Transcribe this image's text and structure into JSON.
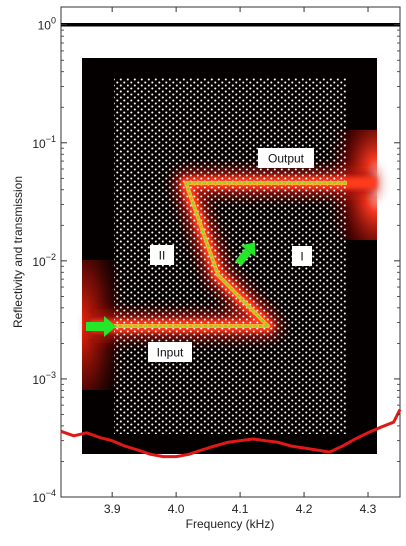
{
  "chart_data": {
    "type": "line",
    "title": "",
    "xlabel": "Frequency (kHz)",
    "ylabel": "Reflectivity and transmission",
    "xlim": [
      3.82,
      4.35
    ],
    "ylim_log10": [
      -4,
      0.15
    ],
    "yscale": "log",
    "x_ticks": [
      {
        "value": 3.9,
        "label": "3.9"
      },
      {
        "value": 4.0,
        "label": "4.0"
      },
      {
        "value": 4.1,
        "label": "4.1"
      },
      {
        "value": 4.2,
        "label": "4.2"
      },
      {
        "value": 4.3,
        "label": "4.3"
      }
    ],
    "y_ticks": [
      {
        "exp": 0,
        "base": "10",
        "sup": "0"
      },
      {
        "exp": -1,
        "base": "10",
        "sup": "−1"
      },
      {
        "exp": -2,
        "base": "10",
        "sup": "−2"
      },
      {
        "exp": -3,
        "base": "10",
        "sup": "−3"
      },
      {
        "exp": -4,
        "base": "10",
        "sup": "−4"
      }
    ],
    "series": [
      {
        "color": "#000000",
        "x": [
          3.82,
          3.9,
          4.0,
          4.1,
          4.2,
          4.3,
          4.35
        ],
        "y": [
          1.0,
          1.0,
          1.0,
          1.0,
          1.0,
          1.0,
          1.0
        ]
      },
      {
        "color": "#e01818",
        "x": [
          3.82,
          3.84,
          3.86,
          3.88,
          3.9,
          3.92,
          3.94,
          3.96,
          3.98,
          4.0,
          4.02,
          4.04,
          4.06,
          4.08,
          4.1,
          4.12,
          4.14,
          4.16,
          4.18,
          4.2,
          4.22,
          4.24,
          4.26,
          4.28,
          4.3,
          4.32,
          4.34,
          4.35
        ],
        "y": [
          0.00036,
          0.00033,
          0.00035,
          0.00032,
          0.0003,
          0.00027,
          0.00025,
          0.00023,
          0.00022,
          0.00022,
          0.00023,
          0.00025,
          0.00027,
          0.00029,
          0.0003,
          0.00031,
          0.0003,
          0.00029,
          0.00027,
          0.00026,
          0.00025,
          0.00024,
          0.00027,
          0.00031,
          0.00035,
          0.00039,
          0.00043,
          0.00055
        ]
      }
    ],
    "inset": {
      "labels": {
        "output": "Output",
        "input": "Input",
        "region1": "I",
        "region2": "II"
      }
    }
  }
}
